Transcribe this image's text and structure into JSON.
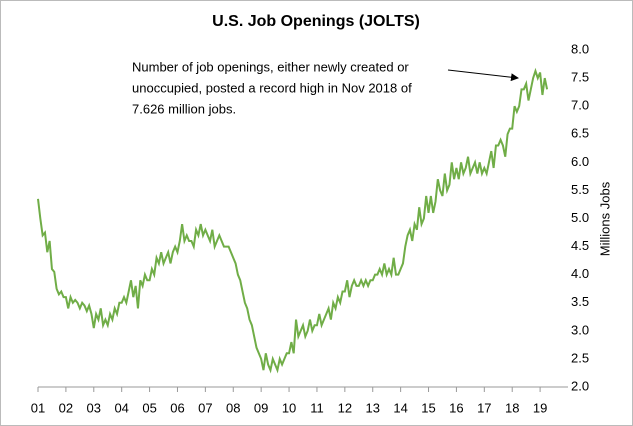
{
  "chart_data": {
    "type": "line",
    "title": "U.S. Job Openings (JOLTS)",
    "y_axis_label": "Millions Jobs",
    "annotation": [
      "Number of job openings, either newly created or",
      "unoccupied, posted a record high in Nov 2018 of",
      "7.626 million jobs."
    ],
    "categories": [
      "01",
      null,
      null,
      null,
      null,
      null,
      null,
      null,
      null,
      null,
      null,
      null,
      "02",
      null,
      null,
      null,
      null,
      null,
      null,
      null,
      null,
      null,
      null,
      null,
      "03",
      null,
      null,
      null,
      null,
      null,
      null,
      null,
      null,
      null,
      null,
      null,
      "04",
      null,
      null,
      null,
      null,
      null,
      null,
      null,
      null,
      null,
      null,
      null,
      "05",
      null,
      null,
      null,
      null,
      null,
      null,
      null,
      null,
      null,
      null,
      null,
      "06",
      null,
      null,
      null,
      null,
      null,
      null,
      null,
      null,
      null,
      null,
      null,
      "07",
      null,
      null,
      null,
      null,
      null,
      null,
      null,
      null,
      null,
      null,
      null,
      "08",
      null,
      null,
      null,
      null,
      null,
      null,
      null,
      null,
      null,
      null,
      null,
      "09",
      null,
      null,
      null,
      null,
      null,
      null,
      null,
      null,
      null,
      null,
      null,
      "10",
      null,
      null,
      null,
      null,
      null,
      null,
      null,
      null,
      null,
      null,
      null,
      "11",
      null,
      null,
      null,
      null,
      null,
      null,
      null,
      null,
      null,
      null,
      null,
      "12",
      null,
      null,
      null,
      null,
      null,
      null,
      null,
      null,
      null,
      null,
      null,
      "13",
      null,
      null,
      null,
      null,
      null,
      null,
      null,
      null,
      null,
      null,
      null,
      "14",
      null,
      null,
      null,
      null,
      null,
      null,
      null,
      null,
      null,
      null,
      null,
      "15",
      null,
      null,
      null,
      null,
      null,
      null,
      null,
      null,
      null,
      null,
      null,
      "16",
      null,
      null,
      null,
      null,
      null,
      null,
      null,
      null,
      null,
      null,
      null,
      "17",
      null,
      null,
      null,
      null,
      null,
      null,
      null,
      null,
      null,
      null,
      null,
      "18",
      null,
      null,
      null,
      null,
      null,
      null,
      null,
      null,
      null,
      null,
      null,
      "19",
      null,
      null,
      null
    ],
    "series": [
      {
        "name": "Job Openings",
        "color": "#70ad47",
        "values": [
          5.35,
          5.0,
          4.7,
          4.75,
          4.4,
          4.6,
          4.1,
          4.05,
          3.75,
          3.65,
          3.7,
          3.6,
          3.6,
          3.4,
          3.6,
          3.5,
          3.55,
          3.5,
          3.4,
          3.5,
          3.45,
          3.35,
          3.45,
          3.3,
          3.05,
          3.3,
          3.2,
          3.4,
          3.1,
          3.2,
          3.1,
          3.3,
          3.2,
          3.4,
          3.3,
          3.5,
          3.5,
          3.6,
          3.5,
          3.7,
          3.9,
          3.6,
          3.8,
          3.4,
          3.9,
          3.8,
          4.0,
          3.9,
          3.9,
          4.1,
          4.0,
          4.3,
          4.2,
          4.4,
          4.2,
          4.3,
          4.4,
          4.2,
          4.4,
          4.5,
          4.4,
          4.6,
          4.9,
          4.6,
          4.7,
          4.6,
          4.6,
          4.5,
          4.8,
          4.7,
          4.9,
          4.7,
          4.8,
          4.7,
          4.6,
          4.8,
          4.5,
          4.6,
          4.7,
          4.6,
          4.5,
          4.5,
          4.5,
          4.4,
          4.3,
          4.2,
          4.0,
          3.9,
          3.7,
          3.5,
          3.4,
          3.2,
          3.1,
          2.9,
          2.7,
          2.6,
          2.5,
          2.3,
          2.6,
          2.4,
          2.3,
          2.5,
          2.4,
          2.3,
          2.5,
          2.4,
          2.5,
          2.6,
          2.6,
          2.8,
          2.6,
          3.2,
          2.9,
          3.0,
          3.1,
          2.9,
          3.0,
          3.2,
          3.0,
          3.1,
          3.1,
          3.3,
          3.1,
          3.2,
          3.3,
          3.4,
          3.2,
          3.5,
          3.4,
          3.6,
          3.5,
          3.7,
          3.7,
          3.9,
          3.6,
          3.8,
          3.9,
          3.8,
          3.8,
          3.9,
          3.8,
          3.9,
          3.8,
          3.9,
          3.9,
          4.0,
          4.0,
          4.1,
          4.0,
          4.2,
          4.0,
          4.1,
          4.0,
          4.3,
          4.0,
          4.0,
          4.1,
          4.2,
          4.5,
          4.7,
          4.8,
          4.6,
          4.9,
          4.8,
          5.2,
          4.9,
          5.0,
          5.4,
          5.1,
          5.4,
          5.1,
          5.3,
          5.7,
          5.5,
          5.4,
          5.8,
          5.5,
          5.6,
          6.0,
          5.7,
          5.9,
          5.7,
          6.0,
          5.8,
          5.9,
          6.1,
          5.8,
          5.9,
          6.0,
          5.8,
          6.0,
          5.8,
          5.9,
          5.8,
          6.0,
          6.2,
          5.9,
          6.3,
          6.3,
          6.4,
          6.3,
          6.1,
          6.5,
          6.6,
          6.6,
          7.0,
          6.9,
          7.0,
          7.3,
          7.3,
          7.4,
          7.1,
          7.3,
          7.5,
          7.626,
          7.5,
          7.6,
          7.2,
          7.5,
          7.3
        ]
      }
    ],
    "ylim": [
      2,
      8
    ],
    "yticks": [
      {
        "value": 2,
        "label": "2.0"
      },
      2.5,
      {
        "value": 3,
        "label": "3.0"
      },
      3.5,
      {
        "value": 4,
        "label": "4.0"
      },
      4.5,
      {
        "value": 5,
        "label": "5.0"
      },
      5.5,
      {
        "value": 6,
        "label": "6.0"
      },
      6.5,
      {
        "value": 7,
        "label": "7.0"
      },
      7.5,
      {
        "value": 8,
        "label": "8.0"
      }
    ],
    "grid": false
  }
}
